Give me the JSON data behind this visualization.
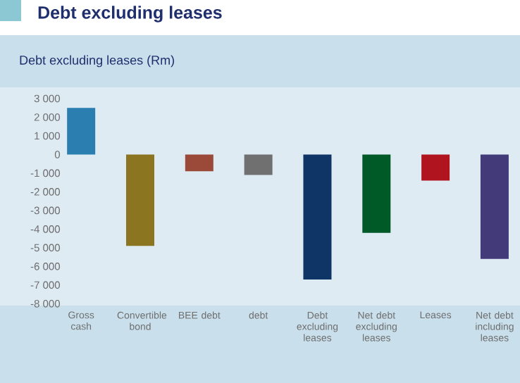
{
  "chart_data": {
    "type": "bar",
    "title": "Debt excluding leases",
    "subtitle": "Debt excluding leases (Rm)",
    "categories": [
      "Gross cash",
      "Convertible bond",
      "BEE debt",
      "debt",
      "Debt excluding leases",
      "Net debt excluding leases",
      "Leases",
      "Net debt including leases"
    ],
    "values": [
      2500,
      -4900,
      -900,
      -1100,
      -6700,
      -4200,
      -1400,
      -5600
    ],
    "colors": [
      "#2a7fb0",
      "#8b7520",
      "#9b4a3a",
      "#707070",
      "#0e3566",
      "#005a28",
      "#b0141e",
      "#433a7a"
    ],
    "ylim": [
      -8000,
      3000
    ],
    "yticks": [
      {
        "value": 3000,
        "label": "3 000"
      },
      {
        "value": 2000,
        "label": "2 000"
      },
      {
        "value": 1000,
        "label": "1 000"
      },
      0,
      {
        "value": -1000,
        "label": "-1 000"
      },
      {
        "value": -2000,
        "label": "-2 000"
      },
      {
        "value": -3000,
        "label": "-3 000"
      },
      {
        "value": -4000,
        "label": "-4 000"
      },
      {
        "value": -5000,
        "label": "-5 000"
      },
      {
        "value": -6000,
        "label": "-6 000"
      },
      {
        "value": -7000,
        "label": "-7 000"
      },
      {
        "value": -8000,
        "label": "-8 000"
      }
    ],
    "grid": false
  }
}
